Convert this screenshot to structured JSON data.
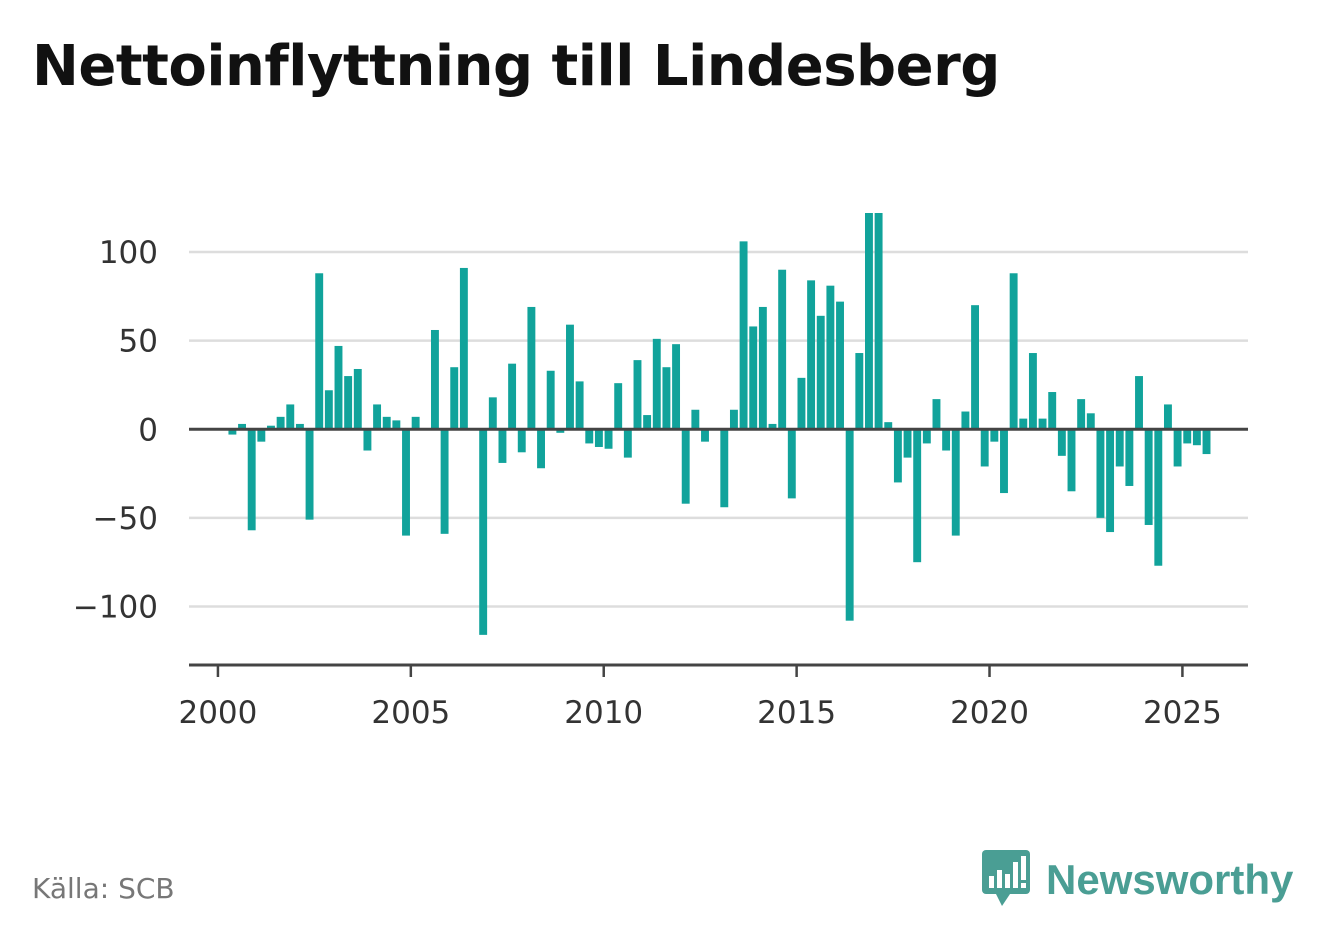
{
  "title": "Nettoinflyttning till Lindesberg",
  "source": "Källa: SCB",
  "brand": {
    "name": "Newsworthy",
    "icon": "newsworthy-logo-icon"
  },
  "colors": {
    "bar": "#11a39b",
    "grid": "#dddddd",
    "axis": "#444444",
    "brand": "#4a9e94"
  },
  "chart_data": {
    "type": "bar",
    "title": "Nettoinflyttning till Lindesberg",
    "xlabel": "",
    "ylabel": "",
    "ylim": [
      -133,
      122
    ],
    "xlim": [
      1999.25,
      2026.7
    ],
    "yticks": [
      -100,
      -50,
      0,
      50,
      100
    ],
    "ytick_labels": [
      "−100",
      "−50",
      "0",
      "50",
      "100"
    ],
    "xticks": [
      2000,
      2005,
      2010,
      2015,
      2020,
      2025
    ],
    "xtick_labels": [
      "2000",
      "2005",
      "2010",
      "2015",
      "2020",
      "2025"
    ],
    "grid": true,
    "x_start": 2000,
    "period": "quarter",
    "values": [
      0,
      -3,
      3,
      -57,
      -7,
      2,
      7,
      14,
      3,
      -51,
      88,
      22,
      47,
      30,
      34,
      -12,
      14,
      7,
      5,
      -60,
      7,
      0,
      56,
      -59,
      35,
      91,
      0,
      -116,
      18,
      -19,
      37,
      -13,
      69,
      -22,
      33,
      -2,
      59,
      27,
      -8,
      -10,
      -11,
      26,
      -16,
      39,
      8,
      51,
      35,
      48,
      -42,
      11,
      -7,
      0,
      -44,
      11,
      106,
      58,
      69,
      3,
      90,
      -39,
      29,
      84,
      64,
      81,
      72,
      -108,
      43,
      122,
      122,
      4,
      -30,
      -16,
      -75,
      -8,
      17,
      -12,
      -60,
      10,
      70,
      -21,
      -7,
      -36,
      88,
      6,
      43,
      6,
      21,
      -15,
      -35,
      17,
      9,
      -50,
      -58,
      -21,
      -32,
      30,
      -54,
      -77,
      14,
      -21,
      -8,
      -9,
      -14
    ]
  }
}
